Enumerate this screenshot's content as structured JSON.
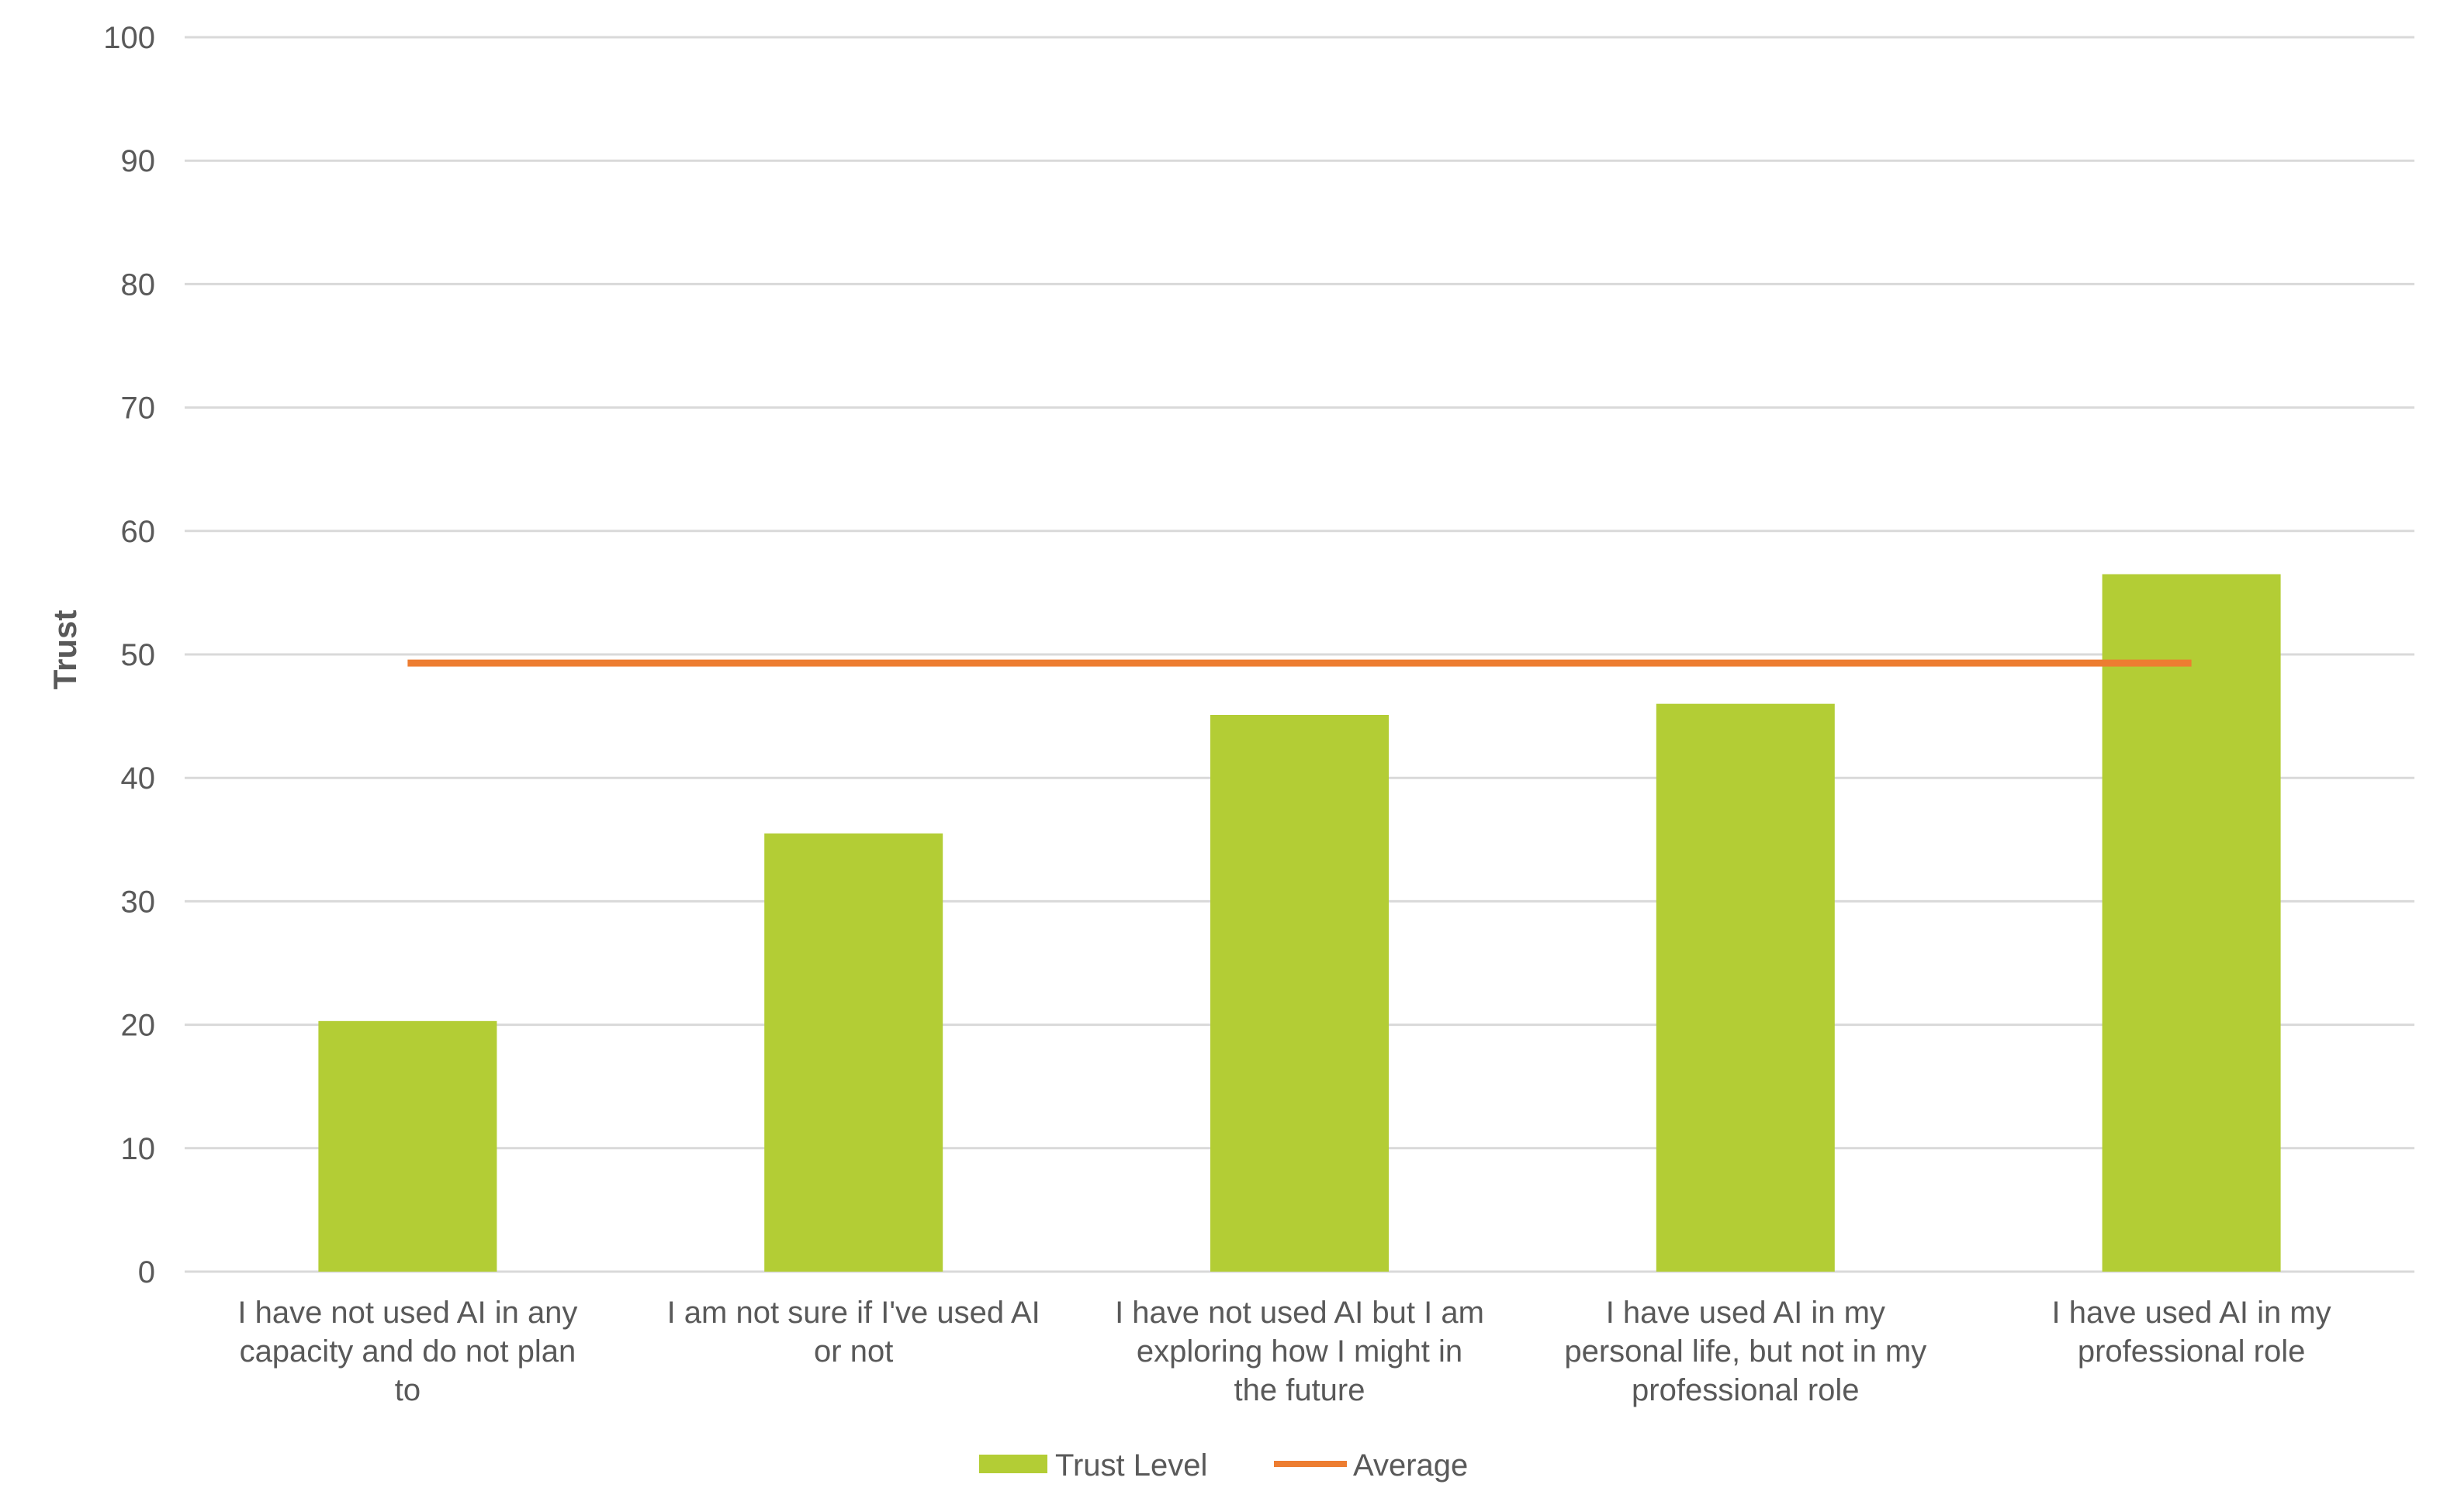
{
  "chart_data": {
    "type": "bar",
    "title": "",
    "xlabel": "",
    "ylabel": "Trust",
    "ylim": [
      0,
      100
    ],
    "yticks": [
      0,
      10,
      20,
      30,
      40,
      50,
      60,
      70,
      80,
      90,
      100
    ],
    "grid": true,
    "legend_position": "bottom",
    "categories": [
      [
        "I have not used AI in any",
        "capacity and do not plan",
        "to"
      ],
      [
        "I am not sure if I've used AI",
        "or not"
      ],
      [
        "I have not used AI but I am",
        "exploring how I might in",
        "the future"
      ],
      [
        "I have used AI in my",
        "personal life, but not in my",
        "professional role"
      ],
      [
        "I have used AI in my",
        "professional role"
      ]
    ],
    "series": [
      {
        "name": "Trust Level",
        "type": "bar",
        "color": "#b3cd35",
        "values": [
          20.3,
          35.5,
          45.1,
          46.0,
          56.5
        ]
      },
      {
        "name": "Average",
        "type": "line",
        "color": "#ed7d31",
        "values": [
          49.3,
          49.3,
          49.3,
          49.3,
          49.3
        ]
      }
    ],
    "colors": {
      "grid": "#d9d9d9",
      "text": "#595959"
    }
  }
}
